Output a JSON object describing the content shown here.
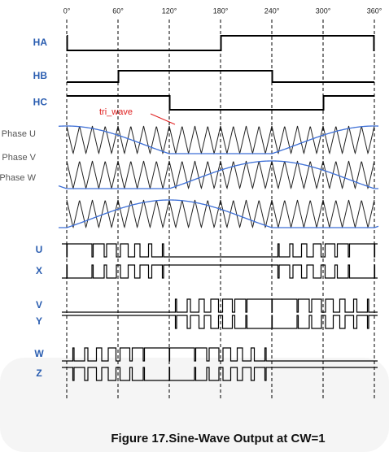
{
  "angles": [
    "0°",
    "60°",
    "120°",
    "180°",
    "240°",
    "300°",
    "360°"
  ],
  "hall_signals": [
    "HA",
    "HB",
    "HC"
  ],
  "annotation": "tri_wave",
  "phase_labels": [
    "Phase U",
    "Phase V",
    "Phase W"
  ],
  "pwm_labels": [
    "U",
    "X",
    "V",
    "Y",
    "W",
    "Z"
  ],
  "caption": "Figure 17.Sine-Wave Output at CW=1"
}
